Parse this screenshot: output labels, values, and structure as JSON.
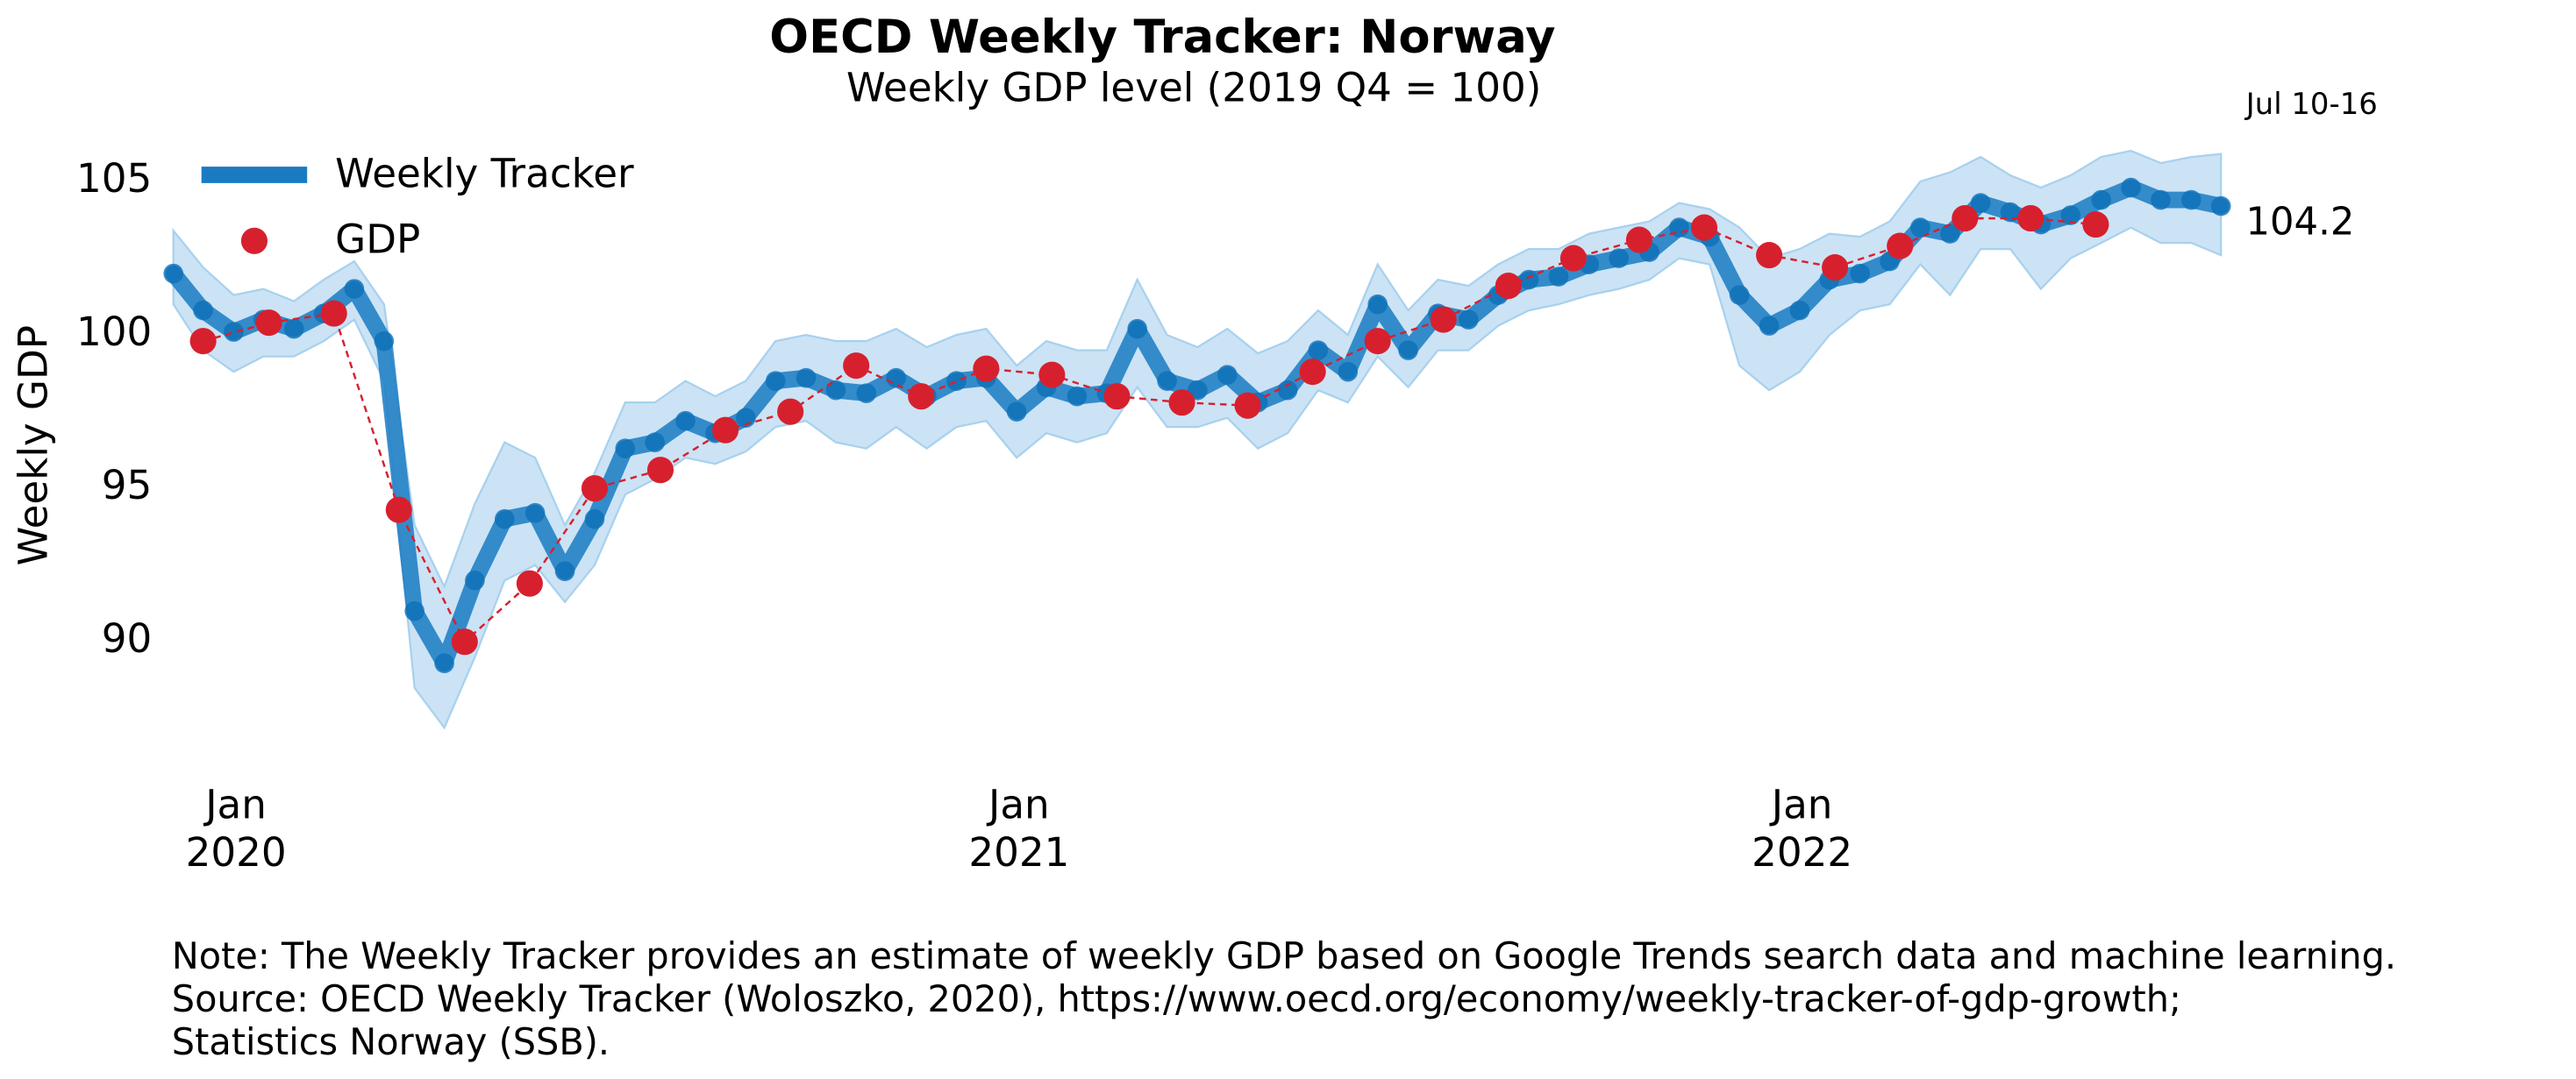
{
  "chart_data": {
    "type": "line",
    "title": "OECD Weekly Tracker: Norway",
    "subtitle": "Weekly GDP level (2019 Q4 = 100)",
    "ylabel": "Weekly GDP",
    "last_period": "Jul 10-16",
    "notes": [
      "Note: The Weekly Tracker provides an estimate of weekly GDP based on Google Trends search data and machine learning.",
      "Source: OECD Weekly Tracker (Woloszko, 2020), https://www.oecd.org/economy/weekly-tracker-of-gdp-growth;",
      "Statistics Norway (SSB)."
    ],
    "legend": "upper left",
    "grid": false,
    "xlim": [
      2019.92,
      2022.535
    ],
    "xticks": [
      {
        "value": 2020,
        "label": "Jan\n2020"
      },
      {
        "value": 2021,
        "label": "Jan\n2021"
      },
      {
        "value": 2022,
        "label": "Jan\n2022"
      }
    ],
    "ylim": [
      85.5,
      106.2
    ],
    "yticks": [
      90,
      95,
      100,
      105
    ],
    "band": {
      "color": "#a8d1ee",
      "x": [
        2019.92,
        2019.958,
        2019.997,
        2020.035,
        2020.074,
        2020.112,
        2020.151,
        2020.189,
        2020.228,
        2020.266,
        2020.305,
        2020.343,
        2020.382,
        2020.42,
        2020.458,
        2020.497,
        2020.535,
        2020.574,
        2020.612,
        2020.651,
        2020.689,
        2020.728,
        2020.766,
        2020.805,
        2020.843,
        2020.882,
        2020.92,
        2020.958,
        2020.997,
        2021.035,
        2021.074,
        2021.112,
        2021.151,
        2021.189,
        2021.228,
        2021.266,
        2021.305,
        2021.343,
        2021.382,
        2021.42,
        2021.458,
        2021.497,
        2021.535,
        2021.574,
        2021.612,
        2021.651,
        2021.689,
        2021.728,
        2021.766,
        2021.805,
        2021.843,
        2021.882,
        2021.92,
        2021.958,
        2021.997,
        2022.035,
        2022.074,
        2022.112,
        2022.151,
        2022.189,
        2022.228,
        2022.266,
        2022.305,
        2022.343,
        2022.382,
        2022.42,
        2022.458,
        2022.497,
        2022.535
      ],
      "lower": [
        101.0,
        99.5,
        98.8,
        99.3,
        99.3,
        99.8,
        100.5,
        98.5,
        88.5,
        87.2,
        89.5,
        92.0,
        92.5,
        91.3,
        92.5,
        94.8,
        95.3,
        96.0,
        95.8,
        96.2,
        97.0,
        97.2,
        96.5,
        96.3,
        97.0,
        96.3,
        97.0,
        97.2,
        96.0,
        96.8,
        96.5,
        96.8,
        98.3,
        97.0,
        97.0,
        97.3,
        96.3,
        96.8,
        98.2,
        97.8,
        99.3,
        98.3,
        99.5,
        99.5,
        100.3,
        100.8,
        101.0,
        101.3,
        101.5,
        101.8,
        102.5,
        102.3,
        99.0,
        98.2,
        98.8,
        100.0,
        100.8,
        101.0,
        102.3,
        101.3,
        102.8,
        102.8,
        101.5,
        102.5,
        103.0,
        103.5,
        103.0,
        103.0,
        102.6
      ],
      "upper": [
        103.4,
        102.2,
        101.3,
        101.5,
        101.1,
        101.8,
        102.4,
        101.0,
        93.8,
        91.8,
        94.5,
        96.5,
        96.0,
        93.8,
        95.5,
        97.8,
        97.8,
        98.5,
        98.0,
        98.5,
        99.8,
        100.0,
        99.8,
        99.8,
        100.2,
        99.6,
        100.0,
        100.2,
        99.0,
        99.8,
        99.5,
        99.5,
        101.8,
        100.0,
        99.6,
        100.2,
        99.4,
        99.8,
        100.8,
        100.0,
        102.3,
        100.8,
        101.8,
        101.6,
        102.3,
        102.8,
        102.8,
        103.3,
        103.5,
        103.7,
        104.3,
        104.1,
        103.5,
        102.5,
        102.8,
        103.3,
        103.2,
        103.7,
        105.0,
        105.3,
        105.8,
        105.2,
        104.8,
        105.2,
        105.8,
        106.0,
        105.6,
        105.8,
        105.9
      ]
    },
    "series": [
      {
        "name": "Weekly Tracker",
        "color": "#1a7bc3",
        "x": [
          2019.92,
          2019.958,
          2019.997,
          2020.035,
          2020.074,
          2020.112,
          2020.151,
          2020.189,
          2020.228,
          2020.266,
          2020.305,
          2020.343,
          2020.382,
          2020.42,
          2020.458,
          2020.497,
          2020.535,
          2020.574,
          2020.612,
          2020.651,
          2020.689,
          2020.728,
          2020.766,
          2020.805,
          2020.843,
          2020.882,
          2020.92,
          2020.958,
          2020.997,
          2021.035,
          2021.074,
          2021.112,
          2021.151,
          2021.189,
          2021.228,
          2021.266,
          2021.305,
          2021.343,
          2021.382,
          2021.42,
          2021.458,
          2021.497,
          2021.535,
          2021.574,
          2021.612,
          2021.651,
          2021.689,
          2021.728,
          2021.766,
          2021.805,
          2021.843,
          2021.882,
          2021.92,
          2021.958,
          2021.997,
          2022.035,
          2022.074,
          2022.112,
          2022.151,
          2022.189,
          2022.228,
          2022.266,
          2022.305,
          2022.343,
          2022.382,
          2022.42,
          2022.458,
          2022.497,
          2022.535
        ],
        "values": [
          102.0,
          100.8,
          100.1,
          100.5,
          100.2,
          100.7,
          101.5,
          99.8,
          91.0,
          89.3,
          92.0,
          94.0,
          94.2,
          92.3,
          94.0,
          96.3,
          96.5,
          97.2,
          96.8,
          97.3,
          98.5,
          98.6,
          98.2,
          98.1,
          98.6,
          98.0,
          98.5,
          98.6,
          97.5,
          98.3,
          98.0,
          98.1,
          100.2,
          98.5,
          98.2,
          98.7,
          97.8,
          98.2,
          99.5,
          98.8,
          101.0,
          99.5,
          100.7,
          100.5,
          101.3,
          101.8,
          101.9,
          102.3,
          102.5,
          102.7,
          103.5,
          103.2,
          101.3,
          100.3,
          100.8,
          101.8,
          102.0,
          102.4,
          103.5,
          103.3,
          104.3,
          104.0,
          103.6,
          103.9,
          104.4,
          104.8,
          104.4,
          104.4,
          104.2
        ]
      },
      {
        "name": "GDP",
        "color": "#d7202e",
        "x": [
          2019.958,
          2020.042,
          2020.125,
          2020.208,
          2020.292,
          2020.375,
          2020.458,
          2020.542,
          2020.625,
          2020.708,
          2020.792,
          2020.875,
          2020.958,
          2021.042,
          2021.125,
          2021.208,
          2021.292,
          2021.375,
          2021.458,
          2021.542,
          2021.625,
          2021.708,
          2021.792,
          2021.875,
          2021.958,
          2022.042,
          2022.125,
          2022.208,
          2022.292,
          2022.375
        ],
        "values": [
          99.8,
          100.4,
          100.7,
          94.3,
          90.0,
          91.9,
          95.0,
          95.6,
          96.9,
          97.5,
          99.0,
          98.0,
          98.9,
          98.7,
          98.0,
          97.8,
          97.7,
          98.8,
          99.8,
          100.5,
          101.6,
          102.5,
          103.1,
          103.5,
          102.6,
          102.2,
          102.9,
          103.8,
          103.8,
          103.6
        ]
      }
    ]
  }
}
